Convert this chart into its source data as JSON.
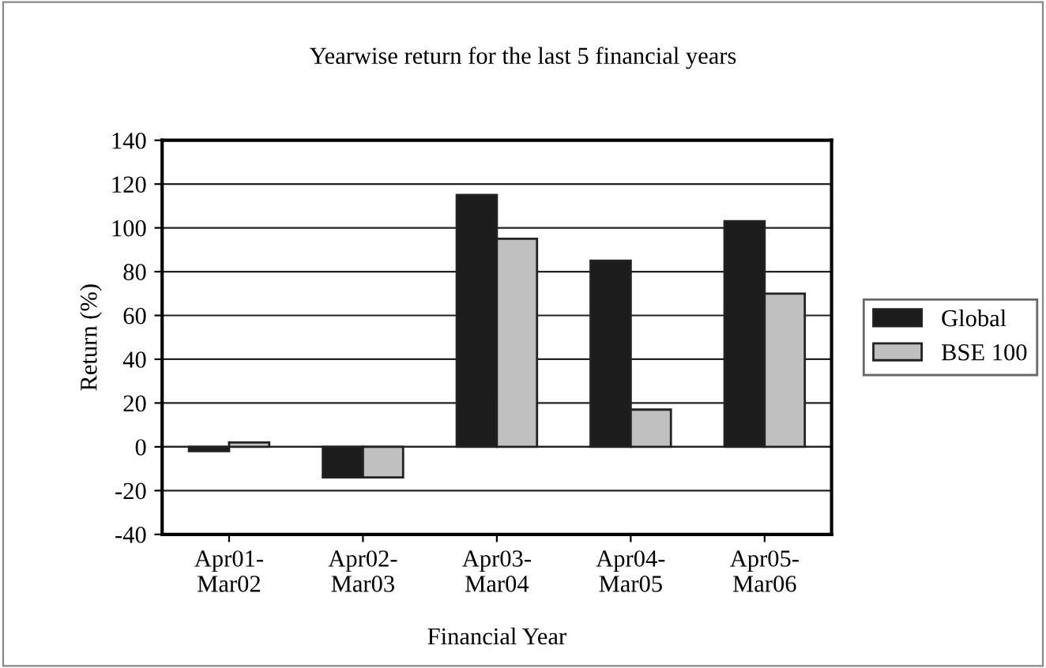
{
  "chart_data": {
    "type": "bar",
    "title": "Yearwise return for the last 5 financial years",
    "xlabel": "Financial Year",
    "ylabel": "Return (%)",
    "categories": [
      "Apr01-\nMar02",
      "Apr02-\nMar03",
      "Apr03-\nMar04",
      "Apr04-\nMar05",
      "Apr05-\nMar06"
    ],
    "series": [
      {
        "name": "Global",
        "color": "#1c1c1c",
        "values": [
          -2,
          -14,
          115,
          85,
          103
        ]
      },
      {
        "name": "BSE 100",
        "color": "#c0c0c0",
        "values": [
          2,
          -14,
          95,
          17,
          70
        ]
      }
    ],
    "ylim": [
      -40,
      140
    ],
    "yticks": [
      -40,
      -20,
      0,
      20,
      40,
      60,
      80,
      100,
      120,
      140
    ],
    "grid": "y",
    "legend": "right"
  }
}
